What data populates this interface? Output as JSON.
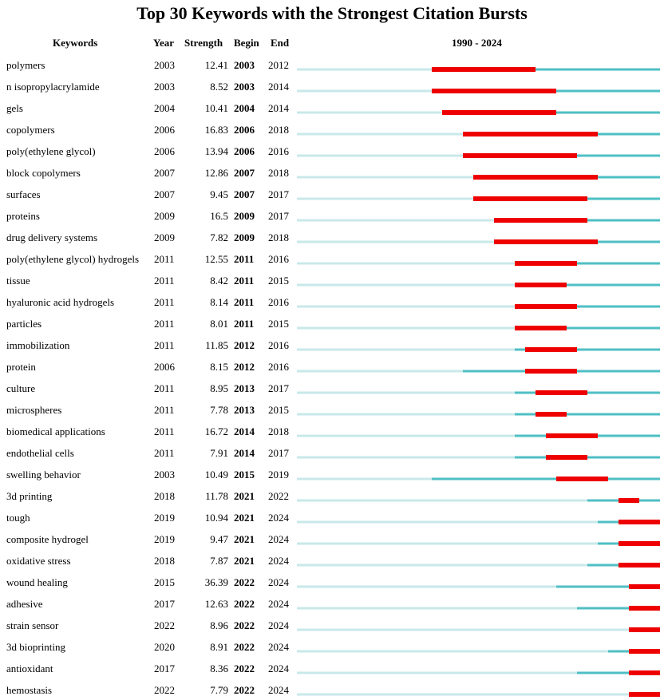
{
  "chart_data": {
    "type": "table",
    "title": "Top 30 Keywords with the Strongest Citation Bursts",
    "columns": [
      "Keywords",
      "Year",
      "Strength",
      "Begin",
      "End"
    ],
    "range_label": "1990 - 2024",
    "timeline": [
      1990,
      2024
    ],
    "colors": {
      "baseline": "#c9e8ea",
      "active": "#4fbfc4",
      "burst": "#ee0000"
    },
    "rows": [
      {
        "keyword": "polymers",
        "year": "2003",
        "strength": "12.41",
        "begin": "2003",
        "end": "2012"
      },
      {
        "keyword": "n isopropylacrylamide",
        "year": "2003",
        "strength": "8.52",
        "begin": "2003",
        "end": "2014"
      },
      {
        "keyword": "gels",
        "year": "2004",
        "strength": "10.41",
        "begin": "2004",
        "end": "2014"
      },
      {
        "keyword": "copolymers",
        "year": "2006",
        "strength": "16.83",
        "begin": "2006",
        "end": "2018"
      },
      {
        "keyword": "poly(ethylene glycol)",
        "year": "2006",
        "strength": "13.94",
        "begin": "2006",
        "end": "2016"
      },
      {
        "keyword": "block copolymers",
        "year": "2007",
        "strength": "12.86",
        "begin": "2007",
        "end": "2018"
      },
      {
        "keyword": "surfaces",
        "year": "2007",
        "strength": "9.45",
        "begin": "2007",
        "end": "2017"
      },
      {
        "keyword": "proteins",
        "year": "2009",
        "strength": "16.5",
        "begin": "2009",
        "end": "2017"
      },
      {
        "keyword": "drug delivery systems",
        "year": "2009",
        "strength": "7.82",
        "begin": "2009",
        "end": "2018"
      },
      {
        "keyword": "poly(ethylene glycol) hydrogels",
        "year": "2011",
        "strength": "12.55",
        "begin": "2011",
        "end": "2016"
      },
      {
        "keyword": "tissue",
        "year": "2011",
        "strength": "8.42",
        "begin": "2011",
        "end": "2015"
      },
      {
        "keyword": "hyaluronic acid hydrogels",
        "year": "2011",
        "strength": "8.14",
        "begin": "2011",
        "end": "2016"
      },
      {
        "keyword": "particles",
        "year": "2011",
        "strength": "8.01",
        "begin": "2011",
        "end": "2015"
      },
      {
        "keyword": "immobilization",
        "year": "2011",
        "strength": "11.85",
        "begin": "2012",
        "end": "2016"
      },
      {
        "keyword": "protein",
        "year": "2006",
        "strength": "8.15",
        "begin": "2012",
        "end": "2016"
      },
      {
        "keyword": "culture",
        "year": "2011",
        "strength": "8.95",
        "begin": "2013",
        "end": "2017"
      },
      {
        "keyword": "microspheres",
        "year": "2011",
        "strength": "7.78",
        "begin": "2013",
        "end": "2015"
      },
      {
        "keyword": "biomedical applications",
        "year": "2011",
        "strength": "16.72",
        "begin": "2014",
        "end": "2018"
      },
      {
        "keyword": "endothelial cells",
        "year": "2011",
        "strength": "7.91",
        "begin": "2014",
        "end": "2017"
      },
      {
        "keyword": "swelling behavior",
        "year": "2003",
        "strength": "10.49",
        "begin": "2015",
        "end": "2019"
      },
      {
        "keyword": "3d printing",
        "year": "2018",
        "strength": "11.78",
        "begin": "2021",
        "end": "2022"
      },
      {
        "keyword": "tough",
        "year": "2019",
        "strength": "10.94",
        "begin": "2021",
        "end": "2024"
      },
      {
        "keyword": "composite hydrogel",
        "year": "2019",
        "strength": "9.47",
        "begin": "2021",
        "end": "2024"
      },
      {
        "keyword": "oxidative stress",
        "year": "2018",
        "strength": "7.87",
        "begin": "2021",
        "end": "2024"
      },
      {
        "keyword": "wound healing",
        "year": "2015",
        "strength": "36.39",
        "begin": "2022",
        "end": "2024"
      },
      {
        "keyword": "adhesive",
        "year": "2017",
        "strength": "12.63",
        "begin": "2022",
        "end": "2024"
      },
      {
        "keyword": "strain sensor",
        "year": "2022",
        "strength": "8.96",
        "begin": "2022",
        "end": "2024"
      },
      {
        "keyword": "3d bioprinting",
        "year": "2020",
        "strength": "8.91",
        "begin": "2022",
        "end": "2024"
      },
      {
        "keyword": "antioxidant",
        "year": "2017",
        "strength": "8.36",
        "begin": "2022",
        "end": "2024"
      },
      {
        "keyword": "hemostasis",
        "year": "2022",
        "strength": "7.79",
        "begin": "2022",
        "end": "2024"
      }
    ]
  }
}
